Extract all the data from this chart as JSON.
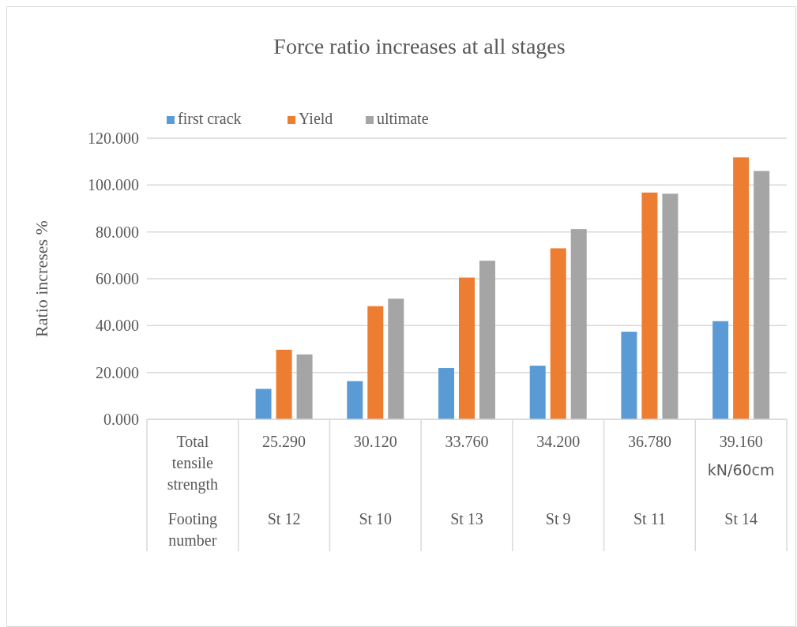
{
  "chart_data": {
    "type": "bar",
    "title": "Force ratio increases at all stages",
    "ylabel": "Ratio increses %",
    "categories": [
      null,
      "25.290\nSt 12",
      "30.120\nSt 10",
      "33.760\nSt 13",
      "34.200\nSt 9",
      "36.780\nSt 11",
      "39.160\nSt 14"
    ],
    "series": [
      {
        "name": "first crack",
        "color": "#5b9bd5",
        "values": [
          null,
          13.0,
          16.3,
          21.9,
          22.9,
          37.4,
          41.9
        ]
      },
      {
        "name": "Yield",
        "color": "#ed7d31",
        "values": [
          null,
          29.7,
          48.3,
          60.5,
          73.0,
          96.8,
          111.8
        ]
      },
      {
        "name": "ultimate",
        "color": "#a5a5a5",
        "values": [
          null,
          27.7,
          51.5,
          67.7,
          81.2,
          96.3,
          106.0
        ]
      }
    ],
    "ylim": [
      0,
      120
    ],
    "yticks": [
      {
        "value": 0,
        "label": "0.000"
      },
      {
        "value": 20,
        "label": "20.000"
      },
      {
        "value": 40,
        "label": "40.000"
      },
      {
        "value": 60,
        "label": "60.000"
      },
      {
        "value": 80,
        "label": "80.000"
      },
      {
        "value": 100,
        "label": "100.000"
      },
      {
        "value": 120,
        "label": "120.000"
      }
    ],
    "grid": "y",
    "legend": "top left",
    "annotations": [
      "Total tensile strength",
      "Footing number",
      "kN/60cm"
    ]
  }
}
